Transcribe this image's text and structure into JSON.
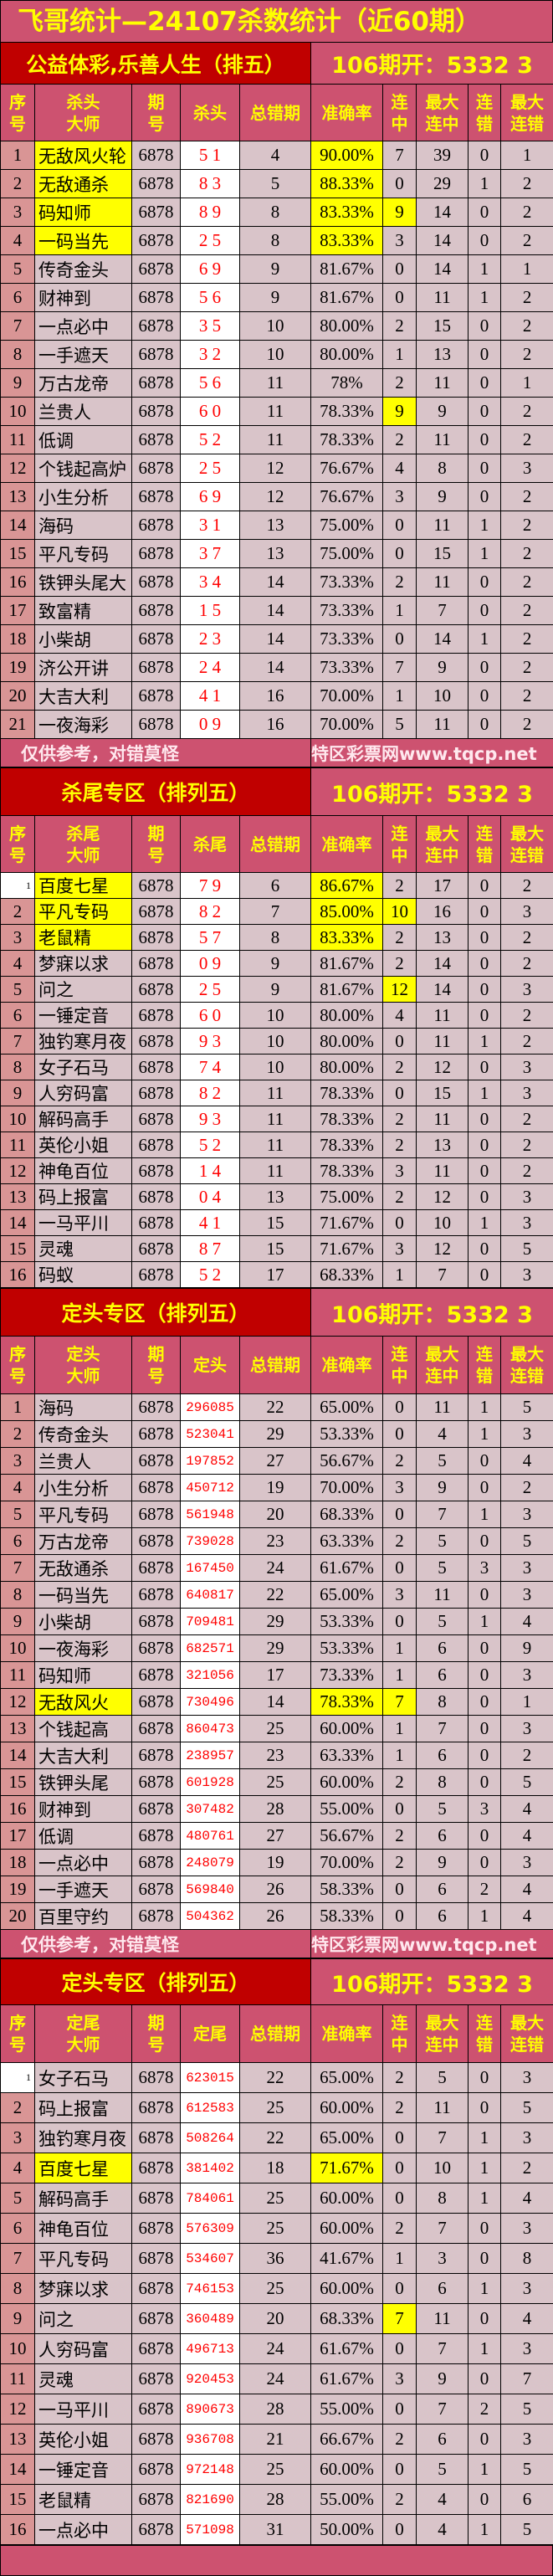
{
  "title": "飞哥统计—24107杀数统计（近60期）",
  "footer": {
    "left": "仅供参考，对错莫怪",
    "right": "特区彩票网www.tqcp.net"
  },
  "colors": {
    "header_bg": "#cd5270",
    "banner_bg": "#c00000",
    "header_text": "#ffff00",
    "highlight": "#ffff00",
    "kill_text": "#ff0000",
    "cell_bg": "#d9c4c9",
    "index_bg": "#d99595"
  },
  "sections": [
    {
      "name": "公益体彩,乐善人生（排五）",
      "issue": "106期开：5332 3",
      "headers": [
        "序号",
        "杀头大师",
        "期号",
        "杀头",
        "总错期",
        "准确率",
        "连中",
        "最大连中",
        "连错",
        "最大连错"
      ],
      "rows": [
        {
          "c": [
            "1",
            "无敌风火轮",
            "6878",
            "5 1",
            "4",
            "90.00%",
            "7",
            "39",
            "0",
            "1"
          ],
          "hl": [
            "name",
            "rate"
          ]
        },
        {
          "c": [
            "2",
            "无敌通杀",
            "6878",
            "8 3",
            "5",
            "88.33%",
            "0",
            "29",
            "1",
            "2"
          ],
          "hl": [
            "name",
            "rate"
          ]
        },
        {
          "c": [
            "3",
            "码知师",
            "6878",
            "8 9",
            "8",
            "83.33%",
            "9",
            "14",
            "0",
            "2"
          ],
          "hl": [
            "name",
            "rate",
            "streak"
          ]
        },
        {
          "c": [
            "4",
            "一码当先",
            "6878",
            "2 5",
            "8",
            "83.33%",
            "3",
            "14",
            "0",
            "2"
          ],
          "hl": [
            "name",
            "rate"
          ]
        },
        {
          "c": [
            "5",
            "传奇金头",
            "6878",
            "6 9",
            "9",
            "81.67%",
            "0",
            "14",
            "1",
            "1"
          ]
        },
        {
          "c": [
            "6",
            "财神到",
            "6878",
            "5 6",
            "9",
            "81.67%",
            "0",
            "11",
            "1",
            "2"
          ]
        },
        {
          "c": [
            "7",
            "一点必中",
            "6878",
            "3 5",
            "10",
            "80.00%",
            "2",
            "15",
            "0",
            "2"
          ]
        },
        {
          "c": [
            "8",
            "一手遮天",
            "6878",
            "3 2",
            "10",
            "80.00%",
            "1",
            "13",
            "0",
            "2"
          ]
        },
        {
          "c": [
            "9",
            "万古龙帝",
            "6878",
            "5 6",
            "11",
            "78%",
            "2",
            "11",
            "0",
            "1"
          ]
        },
        {
          "c": [
            "10",
            "兰贵人",
            "6878",
            "6 0",
            "11",
            "78.33%",
            "9",
            "9",
            "0",
            "2"
          ],
          "hl": [
            "streak"
          ]
        },
        {
          "c": [
            "11",
            "低调",
            "6878",
            "5 2",
            "11",
            "78.33%",
            "2",
            "11",
            "0",
            "2"
          ]
        },
        {
          "c": [
            "12",
            "个钱起高炉",
            "6878",
            "2 5",
            "12",
            "76.67%",
            "4",
            "8",
            "0",
            "3"
          ]
        },
        {
          "c": [
            "13",
            "小生分析",
            "6878",
            "6 9",
            "12",
            "76.67%",
            "3",
            "9",
            "0",
            "2"
          ]
        },
        {
          "c": [
            "14",
            "海码",
            "6878",
            "3 1",
            "13",
            "75.00%",
            "0",
            "11",
            "1",
            "2"
          ]
        },
        {
          "c": [
            "15",
            "平凡专码",
            "6878",
            "3 7",
            "13",
            "75.00%",
            "0",
            "15",
            "1",
            "2"
          ]
        },
        {
          "c": [
            "16",
            "铁钾头尾大",
            "6878",
            "3 4",
            "14",
            "73.33%",
            "2",
            "11",
            "0",
            "2"
          ]
        },
        {
          "c": [
            "17",
            "致富精",
            "6878",
            "1 5",
            "14",
            "73.33%",
            "1",
            "7",
            "0",
            "2"
          ]
        },
        {
          "c": [
            "18",
            "小柴胡",
            "6878",
            "2 3",
            "14",
            "73.33%",
            "0",
            "14",
            "1",
            "2"
          ]
        },
        {
          "c": [
            "19",
            "济公开讲",
            "6878",
            "2 4",
            "14",
            "73.33%",
            "7",
            "9",
            "0",
            "2"
          ]
        },
        {
          "c": [
            "20",
            "大吉大利",
            "6878",
            "4 1",
            "16",
            "70.00%",
            "1",
            "10",
            "0",
            "2"
          ]
        },
        {
          "c": [
            "21",
            "一夜海彩",
            "6878",
            "0 9",
            "16",
            "70.00%",
            "5",
            "11",
            "0",
            "2"
          ]
        }
      ],
      "footer": true
    },
    {
      "name": "杀尾专区（排列五）",
      "issue": "106期开：5332 3",
      "headers": [
        "序号",
        "杀尾大师",
        "期号",
        "杀尾",
        "总错期",
        "准确率",
        "连中",
        "最大连中",
        "连错",
        "最大连错"
      ],
      "rows": [
        {
          "c": [
            "1",
            "百度七星",
            "6878",
            "7 9",
            "6",
            "86.67%",
            "2",
            "17",
            "0",
            "2"
          ],
          "hl": [
            "name",
            "rate"
          ],
          "special_index": true
        },
        {
          "c": [
            "2",
            "平凡专码",
            "6878",
            "8 2",
            "7",
            "85.00%",
            "10",
            "16",
            "0",
            "3"
          ],
          "hl": [
            "name",
            "rate",
            "streak"
          ]
        },
        {
          "c": [
            "3",
            "老鼠精",
            "6878",
            "5 7",
            "8",
            "83.33%",
            "2",
            "13",
            "0",
            "2"
          ],
          "hl": [
            "name",
            "rate"
          ]
        },
        {
          "c": [
            "4",
            "梦寐以求",
            "6878",
            "0 9",
            "9",
            "81.67%",
            "2",
            "14",
            "0",
            "2"
          ]
        },
        {
          "c": [
            "5",
            "问之",
            "6878",
            "2 5",
            "9",
            "81.67%",
            "12",
            "14",
            "0",
            "3"
          ],
          "hl": [
            "streak"
          ]
        },
        {
          "c": [
            "6",
            "一锤定音",
            "6878",
            "6 0",
            "10",
            "80.00%",
            "4",
            "11",
            "0",
            "2"
          ]
        },
        {
          "c": [
            "7",
            "独钓寒月夜",
            "6878",
            "9 3",
            "10",
            "80.00%",
            "0",
            "11",
            "1",
            "2"
          ]
        },
        {
          "c": [
            "8",
            "女子石马",
            "6878",
            "7 4",
            "10",
            "80.00%",
            "2",
            "12",
            "0",
            "3"
          ]
        },
        {
          "c": [
            "9",
            "人穷码富",
            "6878",
            "8 2",
            "11",
            "78.33%",
            "0",
            "15",
            "1",
            "3"
          ]
        },
        {
          "c": [
            "10",
            "解码高手",
            "6878",
            "9 3",
            "11",
            "78.33%",
            "2",
            "11",
            "0",
            "2"
          ]
        },
        {
          "c": [
            "11",
            "英伦小姐",
            "6878",
            "5 2",
            "11",
            "78.33%",
            "2",
            "13",
            "0",
            "2"
          ]
        },
        {
          "c": [
            "12",
            "神龟百位",
            "6878",
            "1 4",
            "11",
            "78.33%",
            "3",
            "11",
            "0",
            "2"
          ]
        },
        {
          "c": [
            "13",
            "码上报富",
            "6878",
            "0 4",
            "13",
            "75.00%",
            "2",
            "12",
            "0",
            "3"
          ]
        },
        {
          "c": [
            "14",
            "一马平川",
            "6878",
            "4 1",
            "15",
            "71.67%",
            "0",
            "10",
            "1",
            "3"
          ]
        },
        {
          "c": [
            "15",
            "灵魂",
            "6878",
            "8 7",
            "15",
            "71.67%",
            "3",
            "12",
            "0",
            "5"
          ]
        },
        {
          "c": [
            "16",
            "码蚁",
            "6878",
            "5 2",
            "17",
            "68.33%",
            "1",
            "7",
            "0",
            "3"
          ]
        }
      ]
    },
    {
      "name": "定头专区（排列五）",
      "issue": "106期开：5332 3",
      "headers": [
        "序号",
        "定头大师",
        "期号",
        "定头",
        "总错期",
        "准确率",
        "连中",
        "最大连中",
        "连错",
        "最大连错"
      ],
      "rows": [
        {
          "c": [
            "1",
            "海码",
            "6878",
            "296085",
            "22",
            "65.00%",
            "0",
            "11",
            "1",
            "5"
          ]
        },
        {
          "c": [
            "2",
            "传奇金头",
            "6878",
            "523041",
            "29",
            "53.33%",
            "0",
            "4",
            "1",
            "3"
          ]
        },
        {
          "c": [
            "3",
            "兰贵人",
            "6878",
            "197852",
            "27",
            "56.67%",
            "2",
            "5",
            "0",
            "4"
          ]
        },
        {
          "c": [
            "4",
            "小生分析",
            "6878",
            "450712",
            "19",
            "70.00%",
            "3",
            "9",
            "0",
            "2"
          ]
        },
        {
          "c": [
            "5",
            "平凡专码",
            "6878",
            "561948",
            "20",
            "68.33%",
            "0",
            "7",
            "1",
            "3"
          ]
        },
        {
          "c": [
            "6",
            "万古龙帝",
            "6878",
            "739028",
            "23",
            "63.33%",
            "2",
            "5",
            "0",
            "5"
          ]
        },
        {
          "c": [
            "7",
            "无敌通杀",
            "6878",
            "167450",
            "24",
            "61.67%",
            "0",
            "5",
            "3",
            "3"
          ]
        },
        {
          "c": [
            "8",
            "一码当先",
            "6878",
            "640817",
            "22",
            "65.00%",
            "3",
            "11",
            "0",
            "3"
          ]
        },
        {
          "c": [
            "9",
            "小柴胡",
            "6878",
            "709481",
            "29",
            "53.33%",
            "0",
            "5",
            "1",
            "4"
          ]
        },
        {
          "c": [
            "10",
            "一夜海彩",
            "6878",
            "682571",
            "29",
            "53.33%",
            "1",
            "6",
            "0",
            "9"
          ]
        },
        {
          "c": [
            "11",
            "码知师",
            "6878",
            "321056",
            "17",
            "73.33%",
            "1",
            "6",
            "0",
            "3"
          ]
        },
        {
          "c": [
            "12",
            "无敌风火",
            "6878",
            "730496",
            "14",
            "78.33%",
            "7",
            "8",
            "0",
            "1"
          ],
          "hl": [
            "name",
            "rate",
            "streak"
          ]
        },
        {
          "c": [
            "13",
            "个钱起高",
            "6878",
            "860473",
            "25",
            "60.00%",
            "1",
            "7",
            "0",
            "3"
          ]
        },
        {
          "c": [
            "14",
            "大吉大利",
            "6878",
            "238957",
            "23",
            "63.33%",
            "1",
            "6",
            "0",
            "2"
          ]
        },
        {
          "c": [
            "15",
            "铁钾头尾",
            "6878",
            "601928",
            "25",
            "60.00%",
            "2",
            "8",
            "0",
            "5"
          ]
        },
        {
          "c": [
            "16",
            "财神到",
            "6878",
            "307482",
            "28",
            "55.00%",
            "0",
            "5",
            "3",
            "4"
          ]
        },
        {
          "c": [
            "17",
            "低调",
            "6878",
            "480761",
            "27",
            "56.67%",
            "2",
            "6",
            "0",
            "4"
          ]
        },
        {
          "c": [
            "18",
            "一点必中",
            "6878",
            "248079",
            "19",
            "70.00%",
            "2",
            "9",
            "0",
            "3"
          ]
        },
        {
          "c": [
            "19",
            "一手遮天",
            "6878",
            "569840",
            "26",
            "58.33%",
            "0",
            "6",
            "2",
            "4"
          ]
        },
        {
          "c": [
            "20",
            "百里守约",
            "6878",
            "504362",
            "26",
            "58.33%",
            "0",
            "6",
            "1",
            "4"
          ]
        }
      ],
      "footer": true
    },
    {
      "name": "定头专区（排列五）",
      "issue": "106期开：5332 3",
      "headers": [
        "序号",
        "定尾大师",
        "期号",
        "定尾",
        "总错期",
        "准确率",
        "连中",
        "最大连中",
        "连错",
        "最大连错"
      ],
      "rows": [
        {
          "c": [
            "1",
            "女子石马",
            "6878",
            "623015",
            "22",
            "65.00%",
            "2",
            "5",
            "0",
            "3"
          ],
          "special_index": true
        },
        {
          "c": [
            "2",
            "码上报富",
            "6878",
            "612583",
            "25",
            "60.00%",
            "2",
            "11",
            "0",
            "5"
          ]
        },
        {
          "c": [
            "3",
            "独钓寒月夜",
            "6878",
            "508264",
            "22",
            "65.00%",
            "0",
            "7",
            "1",
            "3"
          ]
        },
        {
          "c": [
            "4",
            "百度七星",
            "6878",
            "381402",
            "18",
            "71.67%",
            "0",
            "10",
            "1",
            "2"
          ],
          "hl": [
            "name",
            "rate"
          ]
        },
        {
          "c": [
            "5",
            "解码高手",
            "6878",
            "784061",
            "25",
            "60.00%",
            "0",
            "8",
            "1",
            "4"
          ]
        },
        {
          "c": [
            "6",
            "神龟百位",
            "6878",
            "576309",
            "25",
            "60.00%",
            "2",
            "7",
            "0",
            "3"
          ]
        },
        {
          "c": [
            "7",
            "平凡专码",
            "6878",
            "534607",
            "36",
            "41.67%",
            "1",
            "3",
            "0",
            "8"
          ]
        },
        {
          "c": [
            "8",
            "梦寐以求",
            "6878",
            "746153",
            "25",
            "60.00%",
            "0",
            "6",
            "1",
            "3"
          ]
        },
        {
          "c": [
            "9",
            "问之",
            "6878",
            "360489",
            "20",
            "68.33%",
            "7",
            "11",
            "0",
            "4"
          ],
          "hl": [
            "streak"
          ]
        },
        {
          "c": [
            "10",
            "人穷码富",
            "6878",
            "496713",
            "24",
            "61.67%",
            "0",
            "7",
            "1",
            "3"
          ]
        },
        {
          "c": [
            "11",
            "灵魂",
            "6878",
            "920453",
            "24",
            "61.67%",
            "3",
            "9",
            "0",
            "7"
          ]
        },
        {
          "c": [
            "12",
            "一马平川",
            "6878",
            "890673",
            "28",
            "55.00%",
            "0",
            "7",
            "2",
            "5"
          ]
        },
        {
          "c": [
            "13",
            "英伦小姐",
            "6878",
            "936708",
            "21",
            "66.67%",
            "2",
            "6",
            "0",
            "3"
          ]
        },
        {
          "c": [
            "14",
            "一锤定音",
            "6878",
            "972148",
            "25",
            "60.00%",
            "0",
            "5",
            "1",
            "5"
          ]
        },
        {
          "c": [
            "15",
            "老鼠精",
            "6878",
            "821690",
            "28",
            "55.00%",
            "2",
            "4",
            "0",
            "6"
          ]
        },
        {
          "c": [
            "16",
            "一点必中",
            "6878",
            "571098",
            "31",
            "50.00%",
            "0",
            "4",
            "1",
            "5"
          ]
        }
      ]
    }
  ]
}
